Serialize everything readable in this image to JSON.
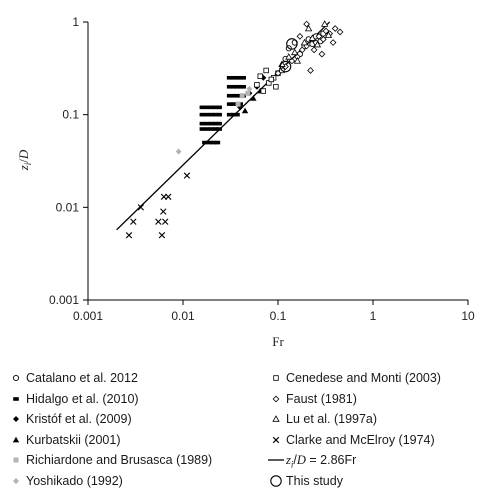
{
  "chart_data": {
    "type": "scatter",
    "xlabel": "Fr",
    "ylabel": "z_i/D",
    "xscale": "log",
    "yscale": "log",
    "xlim": [
      0.001,
      10
    ],
    "ylim": [
      0.001,
      1
    ],
    "x_ticks": [
      "0.001",
      "0.01",
      "0.1",
      "1",
      "10"
    ],
    "y_ticks": [
      "0.001",
      "0.01",
      "0.1",
      "1"
    ],
    "grid": false,
    "legend_placement": "below",
    "fit_line": {
      "label": "z_i/D = 2.86Fr",
      "slope": 2.86,
      "x_range": [
        0.002,
        0.35
      ]
    },
    "series": [
      {
        "name": "Catalano et al. 2012",
        "marker": "circle-open",
        "points": [
          [
            0.13,
            0.52
          ],
          [
            0.15,
            0.6
          ],
          [
            0.17,
            0.45
          ],
          [
            0.19,
            0.55
          ],
          [
            0.21,
            0.65
          ],
          [
            0.23,
            0.58
          ],
          [
            0.12,
            0.4
          ],
          [
            0.25,
            0.7
          ],
          [
            0.28,
            0.62
          ],
          [
            0.3,
            0.75
          ]
        ]
      },
      {
        "name": "Hidalgo et al. (2010)",
        "marker": "square-filled",
        "points": [
          [
            0.017,
            0.05
          ],
          [
            0.019,
            0.05
          ],
          [
            0.021,
            0.05
          ],
          [
            0.023,
            0.05
          ],
          [
            0.016,
            0.07
          ],
          [
            0.018,
            0.07
          ],
          [
            0.02,
            0.07
          ],
          [
            0.022,
            0.07
          ],
          [
            0.024,
            0.07
          ],
          [
            0.016,
            0.08
          ],
          [
            0.018,
            0.08
          ],
          [
            0.02,
            0.08
          ],
          [
            0.022,
            0.08
          ],
          [
            0.024,
            0.08
          ],
          [
            0.016,
            0.1
          ],
          [
            0.018,
            0.1
          ],
          [
            0.02,
            0.1
          ],
          [
            0.022,
            0.1
          ],
          [
            0.024,
            0.1
          ],
          [
            0.016,
            0.12
          ],
          [
            0.018,
            0.12
          ],
          [
            0.02,
            0.12
          ],
          [
            0.022,
            0.12
          ],
          [
            0.024,
            0.12
          ],
          [
            0.031,
            0.13
          ],
          [
            0.034,
            0.13
          ],
          [
            0.037,
            0.13
          ],
          [
            0.04,
            0.13
          ],
          [
            0.031,
            0.16
          ],
          [
            0.034,
            0.16
          ],
          [
            0.037,
            0.16
          ],
          [
            0.04,
            0.16
          ],
          [
            0.043,
            0.16
          ],
          [
            0.031,
            0.2
          ],
          [
            0.034,
            0.2
          ],
          [
            0.037,
            0.2
          ],
          [
            0.04,
            0.2
          ],
          [
            0.043,
            0.2
          ],
          [
            0.031,
            0.25
          ],
          [
            0.034,
            0.25
          ],
          [
            0.037,
            0.25
          ],
          [
            0.04,
            0.25
          ],
          [
            0.043,
            0.25
          ],
          [
            0.031,
            0.1
          ],
          [
            0.034,
            0.1
          ],
          [
            0.037,
            0.1
          ]
        ]
      },
      {
        "name": "Kristóf et al. (2009)",
        "marker": "diamond-filled",
        "points": [
          [
            0.05,
            0.17
          ],
          [
            0.06,
            0.2
          ],
          [
            0.07,
            0.25
          ],
          [
            0.04,
            0.12
          ]
        ]
      },
      {
        "name": "Kurbatskii (2001)",
        "marker": "triangle-filled",
        "points": [
          [
            0.045,
            0.11
          ],
          [
            0.055,
            0.15
          ],
          [
            0.065,
            0.18
          ]
        ]
      },
      {
        "name": "Richiardone and Brusasca (1989)",
        "marker": "square-gray",
        "points": [
          [
            0.038,
            0.13
          ],
          [
            0.042,
            0.16
          ],
          [
            0.048,
            0.17
          ]
        ]
      },
      {
        "name": "Yoshikado (1992)",
        "marker": "diamond-gray",
        "points": [
          [
            0.009,
            0.04
          ],
          [
            0.05,
            0.19
          ]
        ]
      },
      {
        "name": "Cenedese and Monti (2003)",
        "marker": "square-open",
        "points": [
          [
            0.07,
            0.18
          ],
          [
            0.08,
            0.22
          ],
          [
            0.09,
            0.25
          ],
          [
            0.1,
            0.28
          ],
          [
            0.075,
            0.3
          ],
          [
            0.085,
            0.24
          ],
          [
            0.095,
            0.2
          ],
          [
            0.11,
            0.3
          ],
          [
            0.06,
            0.21
          ],
          [
            0.065,
            0.26
          ]
        ]
      },
      {
        "name": "Faust (1981)",
        "marker": "diamond-open",
        "points": [
          [
            0.1,
            0.28
          ],
          [
            0.12,
            0.33
          ],
          [
            0.14,
            0.38
          ],
          [
            0.16,
            0.42
          ],
          [
            0.18,
            0.5
          ],
          [
            0.2,
            0.55
          ],
          [
            0.22,
            0.3
          ],
          [
            0.25,
            0.6
          ],
          [
            0.27,
            0.7
          ],
          [
            0.3,
            0.65
          ],
          [
            0.32,
            0.8
          ],
          [
            0.35,
            0.75
          ],
          [
            0.4,
            0.85
          ],
          [
            0.38,
            0.6
          ],
          [
            0.2,
            0.95
          ],
          [
            0.17,
            0.7
          ],
          [
            0.29,
            0.45
          ],
          [
            0.24,
            0.5
          ],
          [
            0.45,
            0.78
          ]
        ]
      },
      {
        "name": "Lu et al. (1997a)",
        "marker": "triangle-open",
        "points": [
          [
            0.11,
            0.35
          ],
          [
            0.13,
            0.42
          ],
          [
            0.15,
            0.47
          ],
          [
            0.19,
            0.6
          ],
          [
            0.23,
            0.67
          ],
          [
            0.26,
            0.57
          ],
          [
            0.16,
            0.38
          ],
          [
            0.31,
            0.95
          ],
          [
            0.34,
            0.72
          ],
          [
            0.21,
            0.85
          ]
        ]
      },
      {
        "name": "Clarke and McElroy (1974)",
        "marker": "x",
        "points": [
          [
            0.0027,
            0.005
          ],
          [
            0.003,
            0.007
          ],
          [
            0.0036,
            0.01
          ],
          [
            0.0055,
            0.007
          ],
          [
            0.006,
            0.005
          ],
          [
            0.0062,
            0.009
          ],
          [
            0.0065,
            0.007
          ],
          [
            0.0063,
            0.013
          ],
          [
            0.007,
            0.013
          ],
          [
            0.011,
            0.022
          ]
        ]
      },
      {
        "name": "z_i/D = 2.86Fr",
        "marker": "line",
        "points": []
      },
      {
        "name": "This study",
        "marker": "circle-large",
        "points": [
          [
            0.12,
            0.33
          ],
          [
            0.14,
            0.58
          ]
        ]
      }
    ]
  }
}
